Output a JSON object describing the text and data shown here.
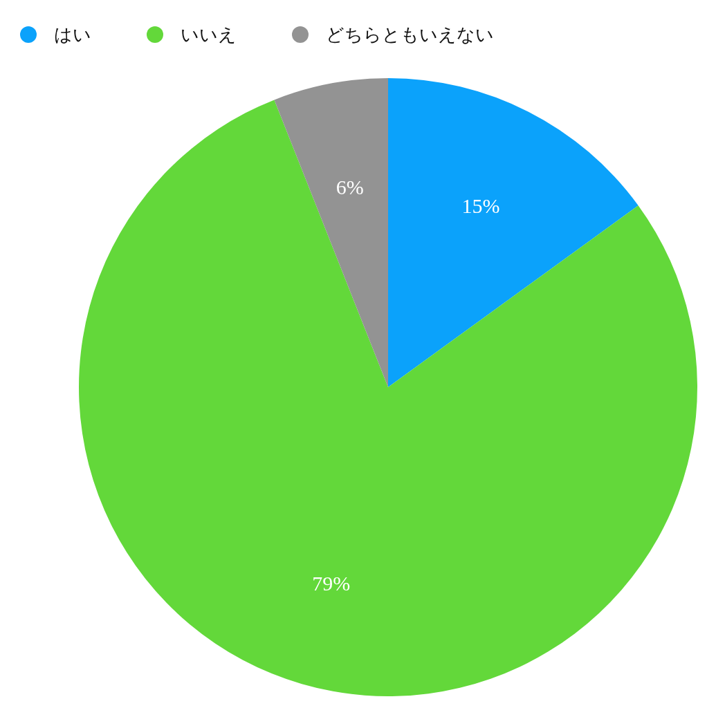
{
  "chart_data": {
    "type": "pie",
    "categories": [
      "はい",
      "いいえ",
      "どちらともいえない"
    ],
    "values": [
      15,
      79,
      6
    ],
    "colors": [
      "#0ba2fb",
      "#63d83a",
      "#939393"
    ],
    "value_labels": [
      "15%",
      "79%",
      "6%"
    ],
    "legend": "top left"
  }
}
